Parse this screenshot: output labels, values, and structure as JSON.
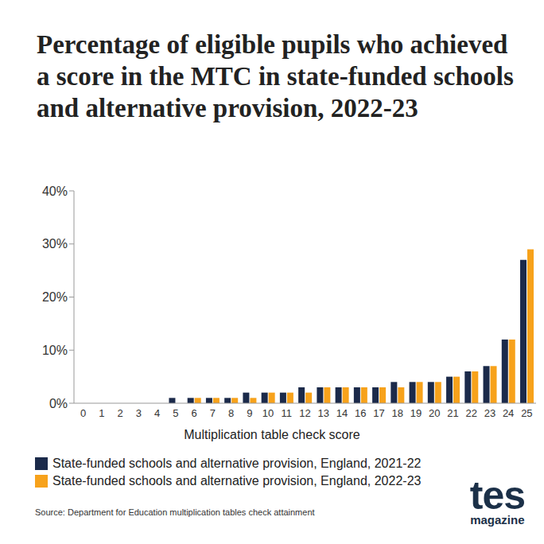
{
  "chart_data": {
    "type": "bar",
    "title": "Percentage of eligible pupils who achieved a score in the MTC in state-funded schools and alternative provision, 2022-23",
    "x_label": "Multiplication table check score",
    "categories": [
      "0",
      "1",
      "2",
      "3",
      "4",
      "5",
      "6",
      "7",
      "8",
      "9",
      "10",
      "11",
      "12",
      "13",
      "14",
      "16",
      "17",
      "18",
      "19",
      "20",
      "21",
      "22",
      "23",
      "24",
      "25"
    ],
    "series": [
      {
        "name": "State-funded schools and alternative provision, England, 2021-22",
        "color": "#1b2a4a",
        "values": [
          0,
          0,
          0,
          0,
          0,
          1,
          1,
          1,
          1,
          2,
          2,
          2,
          3,
          3,
          3,
          3,
          3,
          4,
          4,
          4,
          5,
          6,
          7,
          12,
          27
        ]
      },
      {
        "name": "State-funded schools and alternative provision, England, 2022-23",
        "color": "#f7a21b",
        "values": [
          0,
          0,
          0,
          0,
          0,
          0,
          1,
          1,
          1,
          1,
          2,
          2,
          2,
          3,
          3,
          3,
          3,
          3,
          4,
          4,
          5,
          6,
          7,
          12,
          29
        ]
      }
    ],
    "ylim": [
      0,
      40
    ],
    "yticks": [
      {
        "value": 0,
        "label": "0%"
      },
      {
        "value": 10,
        "label": "10%"
      },
      {
        "value": 20,
        "label": "20%"
      },
      {
        "value": 30,
        "label": "30%"
      },
      {
        "value": 40,
        "label": "40%"
      }
    ],
    "grid": false,
    "legend": "bottom",
    "source": "Source: Department for Education multiplication tables check attainment",
    "logo": "tes",
    "logo_subtitle": "magazine"
  }
}
